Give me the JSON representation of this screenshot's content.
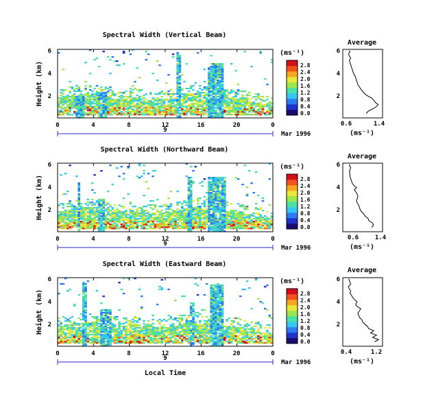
{
  "figure": {
    "xlabel": "Local Time",
    "date_label": "Mar 1996",
    "day_label": "9",
    "colorbar_unit": "(ms⁻¹)",
    "profile_title": "Average",
    "profile_unit": "(ms⁻¹)",
    "colormap": [
      "#1a0b6e",
      "#1f33c8",
      "#2e7bf0",
      "#36c6f0",
      "#4be0a6",
      "#9be64f",
      "#e8e83a",
      "#f5a623",
      "#f0541e",
      "#d1101c"
    ]
  },
  "chart_data": [
    {
      "type": "heatmap",
      "title": "Spectral Width (Vertical Beam)",
      "ylabel": "Height (km)",
      "xlabel": "",
      "x_ticks": [
        "0",
        "4",
        "8",
        "12",
        "16",
        "20",
        "0"
      ],
      "y_ticks": [
        "2",
        "4",
        "6"
      ],
      "xlim": [
        0,
        24
      ],
      "ylim": [
        0,
        6.2
      ],
      "colorbar": {
        "ticks": [
          "0.0",
          "0.4",
          "0.8",
          "1.2",
          "1.6",
          "2.0",
          "2.4",
          "2.8"
        ],
        "range": [
          0,
          3.0
        ]
      },
      "notes": "Most echoes below 2 km; convective plume near 17-18 h reaching ~5 km; narrow streak near 13.5 h"
    },
    {
      "type": "line",
      "title": "Average",
      "xlabel": "(ms⁻¹)",
      "x_ticks": [
        "0.6",
        "1.4"
      ],
      "y_ticks": [
        "2",
        "4",
        "6"
      ],
      "xlim": [
        0.4,
        1.5
      ],
      "ylim": [
        0,
        6.2
      ],
      "x": [
        1.05,
        1.1,
        1.22,
        1.32,
        1.38,
        1.3,
        1.26,
        1.2,
        1.08,
        1.0,
        0.95,
        0.9,
        0.86,
        0.82,
        0.8,
        0.78,
        0.76,
        0.74,
        0.7,
        0.68,
        0.66,
        0.64,
        0.62,
        0.6,
        0.58,
        0.62,
        0.58,
        0.56,
        0.6,
        0.58
      ],
      "y": [
        0.4,
        0.6,
        0.8,
        1.0,
        1.2,
        1.4,
        1.6,
        1.8,
        2.0,
        2.2,
        2.4,
        2.6,
        2.8,
        3.0,
        3.2,
        3.4,
        3.6,
        3.8,
        4.0,
        4.2,
        4.4,
        4.6,
        4.8,
        5.0,
        5.2,
        5.4,
        5.6,
        5.8,
        6.0,
        6.1
      ]
    },
    {
      "type": "heatmap",
      "title": "Spectral Width (Northward Beam)",
      "ylabel": "Height (km)",
      "xlabel": "",
      "x_ticks": [
        "0",
        "4",
        "8",
        "12",
        "16",
        "20",
        "0"
      ],
      "y_ticks": [
        "2",
        "4",
        "6"
      ],
      "xlim": [
        0,
        24
      ],
      "ylim": [
        0,
        6.2
      ],
      "colorbar": {
        "ticks": [
          "0.0",
          "0.4",
          "0.8",
          "1.2",
          "1.6",
          "2.0",
          "2.4",
          "2.8"
        ],
        "range": [
          0,
          3.0
        ]
      },
      "notes": "Layer 1-2 km most of day; plume near 17-18 h reaching ~5 km; isolated patches 4-5 h"
    },
    {
      "type": "line",
      "title": "Average",
      "xlabel": "(ms⁻¹)",
      "x_ticks": [
        "0.6",
        "1.4"
      ],
      "y_ticks": [
        "2",
        "4",
        "6"
      ],
      "xlim": [
        0.4,
        1.5
      ],
      "ylim": [
        0,
        6.2
      ],
      "x": [
        1.2,
        1.25,
        1.22,
        1.12,
        1.1,
        1.02,
        0.98,
        0.92,
        0.88,
        0.86,
        0.84,
        0.8,
        0.78,
        0.8,
        0.82,
        0.8,
        0.76,
        0.72,
        0.78,
        0.7,
        0.66,
        0.64,
        0.62,
        0.6,
        0.6,
        0.58,
        0.6,
        0.62,
        0.58,
        0.6
      ],
      "y": [
        0.4,
        0.6,
        0.8,
        1.0,
        1.2,
        1.4,
        1.6,
        1.8,
        2.0,
        2.2,
        2.4,
        2.6,
        2.8,
        3.0,
        3.2,
        3.4,
        3.6,
        3.8,
        4.0,
        4.2,
        4.4,
        4.6,
        4.8,
        5.0,
        5.2,
        5.4,
        5.6,
        5.8,
        6.0,
        6.1
      ]
    },
    {
      "type": "heatmap",
      "title": "Spectral Width (Eastward Beam)",
      "ylabel": "Height (km)",
      "xlabel": "Local Time",
      "x_ticks": [
        "0",
        "4",
        "8",
        "12",
        "16",
        "20",
        "0"
      ],
      "y_ticks": [
        "2",
        "4",
        "6"
      ],
      "xlim": [
        0,
        24
      ],
      "ylim": [
        0,
        6.2
      ],
      "colorbar": {
        "ticks": [
          "0.0",
          "0.4",
          "0.8",
          "1.2",
          "1.6",
          "2.0",
          "2.4",
          "2.8"
        ],
        "range": [
          0,
          3.0
        ]
      },
      "notes": "Layer to ~3 km; plume near 17-18 h reaching ~5.5 km; streaks near 3 h and 15 h"
    },
    {
      "type": "line",
      "title": "Average",
      "xlabel": "(ms⁻¹)",
      "x_ticks": [
        "0.4",
        "1.2"
      ],
      "y_ticks": [
        "2",
        "4",
        "6"
      ],
      "xlim": [
        0.3,
        1.3
      ],
      "ylim": [
        0,
        6.2
      ],
      "x": [
        1.1,
        1.2,
        1.05,
        1.15,
        1.0,
        1.08,
        0.95,
        0.92,
        0.85,
        0.8,
        0.78,
        0.72,
        0.7,
        0.68,
        0.72,
        0.75,
        0.66,
        0.62,
        0.66,
        0.6,
        0.55,
        0.52,
        0.48,
        0.5,
        0.46,
        0.44,
        0.5,
        0.48,
        0.46,
        0.45
      ],
      "y": [
        0.4,
        0.6,
        0.8,
        1.0,
        1.2,
        1.4,
        1.6,
        1.8,
        2.0,
        2.2,
        2.4,
        2.6,
        2.8,
        3.0,
        3.2,
        3.4,
        3.6,
        3.8,
        4.0,
        4.2,
        4.4,
        4.6,
        4.8,
        5.0,
        5.2,
        5.4,
        5.6,
        5.8,
        6.0,
        6.1
      ]
    }
  ]
}
